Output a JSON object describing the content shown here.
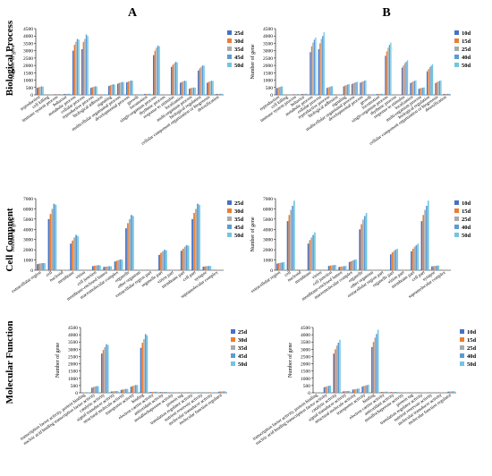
{
  "figure": {
    "col_labels": [
      "A",
      "B"
    ],
    "row_labels": [
      "Biological Process",
      "Cell Compnent",
      "Molecular Function"
    ],
    "ylabel": "Number of gene"
  },
  "colors": {
    "series": [
      "#4472c4",
      "#ed7d31",
      "#a9a9a9",
      "#5b9bd5",
      "#70c6e0"
    ],
    "axis": "#000000",
    "grid": "#dddddd"
  },
  "chart_data": [
    {
      "type": "bar",
      "panel": "A-BP",
      "ylabel": "Number of gene",
      "ylim": [
        0,
        4500
      ],
      "yticks": [
        0,
        500,
        1000,
        1500,
        2000,
        2500,
        3000,
        3500,
        4000,
        4500
      ],
      "legend": "right",
      "categories": [
        "reproduction",
        "cell killing",
        "immune system process",
        "behavior",
        "metabolic process",
        "cellular process",
        "reproductive process",
        "biological adhesion",
        "signaling",
        "multicellular organismal process",
        "developmental process",
        "growth",
        "locomotion",
        "single-organism process",
        "rhythmic process",
        "response to stimulus",
        "localization",
        "multi-organism process",
        "biological regulation",
        "cellular component organization or biogenesis",
        "detoxification"
      ],
      "series": [
        {
          "name": "25d",
          "values": [
            480,
            10,
            40,
            60,
            3000,
            3100,
            480,
            30,
            600,
            760,
            850,
            30,
            60,
            2700,
            10,
            1900,
            820,
            420,
            1650,
            820,
            60
          ]
        },
        {
          "name": "30d",
          "values": [
            520,
            12,
            45,
            65,
            3400,
            3600,
            520,
            35,
            650,
            810,
            900,
            35,
            65,
            3000,
            12,
            2050,
            880,
            460,
            1800,
            880,
            65
          ]
        },
        {
          "name": "35d",
          "values": [
            540,
            14,
            48,
            70,
            3600,
            3800,
            550,
            38,
            680,
            840,
            930,
            38,
            68,
            3200,
            14,
            2150,
            920,
            480,
            1900,
            920,
            68
          ]
        },
        {
          "name": "45d",
          "values": [
            580,
            15,
            52,
            75,
            3800,
            4100,
            580,
            40,
            720,
            880,
            980,
            40,
            72,
            3350,
            15,
            2250,
            960,
            500,
            2000,
            960,
            72
          ]
        },
        {
          "name": "50d",
          "values": [
            560,
            14,
            50,
            72,
            3750,
            4000,
            570,
            39,
            700,
            860,
            960,
            39,
            70,
            3300,
            14,
            2200,
            940,
            490,
            1980,
            940,
            70
          ]
        }
      ]
    },
    {
      "type": "bar",
      "panel": "B-BP",
      "ylabel": "Number of gene",
      "ylim": [
        0,
        4500
      ],
      "yticks": [
        0,
        500,
        1000,
        1500,
        2000,
        2500,
        3000,
        3500,
        4000,
        4500
      ],
      "legend": "right",
      "categories": [
        "reproduction",
        "cell killing",
        "immune system process",
        "behavior",
        "metabolic process",
        "cellular process",
        "reproductive process",
        "biological adhesion",
        "signaling",
        "multicellular organismal process",
        "developmental process",
        "growth",
        "locomotion",
        "single-organism process",
        "rhythmic process",
        "response to stimulus",
        "localization",
        "multi-organism process",
        "biological regulation",
        "cellular component organization or biogenesis",
        "detoxification"
      ],
      "series": [
        {
          "name": "10d",
          "values": [
            460,
            10,
            40,
            60,
            2900,
            3100,
            470,
            30,
            580,
            740,
            830,
            30,
            60,
            2650,
            10,
            1850,
            800,
            410,
            1600,
            800,
            60
          ]
        },
        {
          "name": "15d",
          "values": [
            500,
            12,
            44,
            64,
            3300,
            3500,
            510,
            34,
            630,
            790,
            880,
            34,
            64,
            2950,
            12,
            2000,
            860,
            450,
            1750,
            860,
            64
          ]
        },
        {
          "name": "25d",
          "values": [
            530,
            13,
            47,
            68,
            3550,
            3800,
            540,
            37,
            670,
            830,
            920,
            37,
            67,
            3200,
            13,
            2150,
            910,
            470,
            1880,
            910,
            67
          ]
        },
        {
          "name": "40d",
          "values": [
            560,
            14,
            50,
            72,
            3750,
            4000,
            570,
            39,
            700,
            860,
            960,
            39,
            70,
            3400,
            14,
            2250,
            950,
            490,
            1980,
            950,
            70
          ]
        },
        {
          "name": "50d",
          "values": [
            580,
            15,
            52,
            75,
            3900,
            4250,
            590,
            41,
            730,
            890,
            990,
            41,
            73,
            3550,
            15,
            2350,
            980,
            510,
            2080,
            980,
            73
          ]
        }
      ]
    },
    {
      "type": "bar",
      "panel": "A-CC",
      "ylabel": "Number of gene",
      "ylim": [
        0,
        7000
      ],
      "yticks": [
        0,
        1000,
        2000,
        3000,
        4000,
        5000,
        6000,
        7000
      ],
      "legend": "right",
      "categories": [
        "extracellular region",
        "cell",
        "nucleoid",
        "membrane",
        "virion",
        "cell junction",
        "membrane-enclosed lumen",
        "macromolecular complex",
        "organelle",
        "other organism",
        "extracellular region part",
        "organelle part",
        "virion part",
        "membrane part",
        "cell part",
        "synapse",
        "supramolecular complex"
      ],
      "series": [
        {
          "name": "25d",
          "values": [
            600,
            5000,
            20,
            2600,
            5,
            400,
            320,
            850,
            4100,
            10,
            20,
            1500,
            5,
            1900,
            5000,
            350,
            20
          ]
        },
        {
          "name": "30d",
          "values": [
            650,
            5500,
            22,
            2900,
            6,
            440,
            350,
            930,
            4600,
            11,
            22,
            1700,
            6,
            2100,
            5600,
            380,
            22
          ]
        },
        {
          "name": "35d",
          "values": [
            680,
            6000,
            24,
            3200,
            7,
            470,
            370,
            990,
            5000,
            12,
            24,
            1850,
            7,
            2300,
            6000,
            400,
            24
          ]
        },
        {
          "name": "45d",
          "values": [
            700,
            6500,
            25,
            3450,
            7,
            490,
            390,
            1050,
            5400,
            12,
            25,
            2000,
            7,
            2450,
            6500,
            420,
            25
          ]
        },
        {
          "name": "50d",
          "values": [
            690,
            6400,
            24,
            3350,
            7,
            480,
            380,
            1030,
            5300,
            12,
            24,
            1950,
            7,
            2400,
            6400,
            410,
            24
          ]
        }
      ]
    },
    {
      "type": "bar",
      "panel": "B-CC",
      "ylabel": "Number of gene",
      "ylim": [
        0,
        7000
      ],
      "yticks": [
        0,
        1000,
        2000,
        3000,
        4000,
        5000,
        6000,
        7000
      ],
      "legend": "right",
      "categories": [
        "extracellular region",
        "cell",
        "nucleoid",
        "membrane",
        "virion",
        "cell junction",
        "membrane-enclosed lumen",
        "macromolecular complex",
        "organelle",
        "other organism",
        "extracellular region part",
        "organelle part",
        "virion part",
        "membrane part",
        "cell part",
        "synapse",
        "supramolecular complex"
      ],
      "series": [
        {
          "name": "10d",
          "values": [
            650,
            4800,
            20,
            2600,
            5,
            420,
            320,
            800,
            4000,
            10,
            20,
            1550,
            5,
            1850,
            4800,
            380,
            20
          ]
        },
        {
          "name": "15d",
          "values": [
            700,
            5400,
            22,
            2950,
            6,
            450,
            350,
            880,
            4500,
            11,
            22,
            1750,
            6,
            2100,
            5400,
            400,
            22
          ]
        },
        {
          "name": "25d",
          "values": [
            730,
            5900,
            24,
            3200,
            7,
            480,
            380,
            950,
            4950,
            12,
            24,
            1900,
            7,
            2300,
            5900,
            420,
            24
          ]
        },
        {
          "name": "40d",
          "values": [
            760,
            6300,
            25,
            3450,
            7,
            500,
            400,
            1010,
            5300,
            12,
            25,
            2000,
            7,
            2450,
            6300,
            440,
            25
          ]
        },
        {
          "name": "50d",
          "values": [
            790,
            6800,
            26,
            3700,
            8,
            520,
            420,
            1060,
            5600,
            13,
            26,
            2100,
            8,
            2600,
            6800,
            460,
            26
          ]
        }
      ]
    },
    {
      "type": "bar",
      "panel": "A-MF",
      "ylabel": "Number of gene",
      "ylim": [
        0,
        4500
      ],
      "yticks": [
        0,
        500,
        1000,
        1500,
        2000,
        2500,
        3000,
        3500,
        4000,
        4500
      ],
      "legend": "right",
      "categories": [
        "transcription factor activity, protein binding",
        "nucleic acid binding transcription factor activity",
        "catalytic activity",
        "signal transducer activity",
        "structural molecule activity",
        "transporter activity",
        "binding",
        "electron carrier activity",
        "antioxidant activity",
        "metallochaperone activity",
        "protein tag",
        "translation regulator activity",
        "nutrient reservoir activity",
        "molecular transducer activity",
        "molecular function regulator"
      ],
      "series": [
        {
          "name": "25d",
          "values": [
            30,
            350,
            2700,
            90,
            200,
            420,
            3100,
            60,
            50,
            10,
            5,
            20,
            5,
            30,
            80
          ]
        },
        {
          "name": "30d",
          "values": [
            32,
            400,
            2950,
            100,
            230,
            470,
            3450,
            65,
            55,
            11,
            6,
            22,
            6,
            33,
            90
          ]
        },
        {
          "name": "35d",
          "values": [
            34,
            430,
            3150,
            110,
            250,
            500,
            3700,
            70,
            58,
            12,
            6,
            24,
            6,
            35,
            95
          ]
        },
        {
          "name": "45d",
          "values": [
            36,
            460,
            3350,
            120,
            270,
            540,
            4050,
            74,
            60,
            12,
            7,
            25,
            7,
            37,
            100
          ]
        },
        {
          "name": "50d",
          "values": [
            35,
            450,
            3300,
            118,
            265,
            530,
            3950,
            72,
            59,
            12,
            7,
            24,
            7,
            36,
            98
          ]
        }
      ]
    },
    {
      "type": "bar",
      "panel": "B-MF",
      "ylabel": "Number of gene",
      "ylim": [
        0,
        4500
      ],
      "yticks": [
        0,
        500,
        1000,
        1500,
        2000,
        2500,
        3000,
        3500,
        4000,
        4500
      ],
      "legend": "right",
      "categories": [
        "transcription factor activity, protein binding",
        "nucleic acid binding transcription factor activity",
        "catalytic activity",
        "signal transducer activity",
        "structural molecule activity",
        "transporter activity",
        "binding",
        "electron carrier activity",
        "antioxidant activity",
        "metallochaperone activity",
        "protein tag",
        "translation regulator activity",
        "nutrient reservoir activity",
        "molecular transducer activity",
        "molecular function regulator"
      ],
      "series": [
        {
          "name": "10d",
          "values": [
            30,
            380,
            2700,
            100,
            220,
            430,
            3150,
            60,
            50,
            10,
            5,
            20,
            5,
            30,
            80
          ]
        },
        {
          "name": "15d",
          "values": [
            32,
            420,
            3000,
            110,
            240,
            470,
            3500,
            65,
            55,
            11,
            6,
            22,
            6,
            33,
            90
          ]
        },
        {
          "name": "25d",
          "values": [
            34,
            450,
            3250,
            118,
            260,
            500,
            3800,
            70,
            58,
            12,
            6,
            24,
            6,
            35,
            95
          ]
        },
        {
          "name": "40d",
          "values": [
            36,
            480,
            3450,
            125,
            280,
            530,
            4050,
            74,
            60,
            12,
            7,
            25,
            7,
            37,
            100
          ]
        },
        {
          "name": "50d",
          "values": [
            38,
            510,
            3650,
            132,
            300,
            560,
            4350,
            78,
            63,
            13,
            7,
            26,
            7,
            39,
            106
          ]
        }
      ]
    }
  ]
}
